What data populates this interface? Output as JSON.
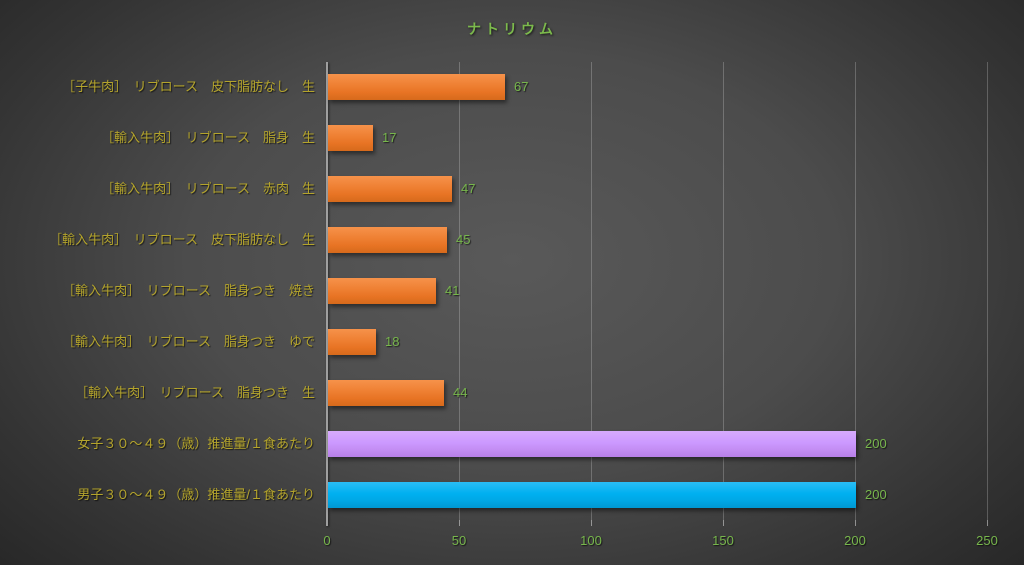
{
  "chart": {
    "title": "ナトリウム"
  },
  "chart_data": {
    "type": "bar",
    "orientation": "horizontal",
    "title": "ナトリウム",
    "xlabel": "",
    "ylabel": "",
    "categories": [
      "［子牛肉］　リブロース　皮下脂肪なし　生",
      "［輸入牛肉］　リブロース　脂身　生",
      "［輸入牛肉］　リブロース　赤肉　生",
      "［輸入牛肉］　リブロース　皮下脂肪なし　生",
      "［輸入牛肉］　リブロース　脂身つき　焼き",
      "［輸入牛肉］　リブロース　脂身つき　ゆで",
      "［輸入牛肉］　リブロース　脂身つき　生",
      "女子３０～４９（歳）推進量/１食あたり",
      "男子３０～４９（歳）推進量/１食あたり"
    ],
    "values": [
      67,
      17,
      47,
      45,
      41,
      18,
      44,
      200,
      200
    ],
    "bar_colors": [
      "orange",
      "orange",
      "orange",
      "orange",
      "orange",
      "orange",
      "orange",
      "purple",
      "blue"
    ],
    "xlim": [
      0,
      250
    ],
    "xticks": [
      0,
      50,
      100,
      150,
      200,
      250
    ],
    "grid": true,
    "legend_position": "none",
    "colors": {
      "orange_bar": "#ED7D31",
      "purple_bar": "#CC99FF",
      "blue_bar": "#00B0F0",
      "category_label": "#B4A42C",
      "value_label": "#77B64C",
      "tick_label": "#77B64C",
      "title": "#7CBA4C",
      "axis_line": "#9F9F9F",
      "gridline": "#6E6E6E",
      "background_center": "#595959",
      "background_edge": "#262626"
    }
  }
}
